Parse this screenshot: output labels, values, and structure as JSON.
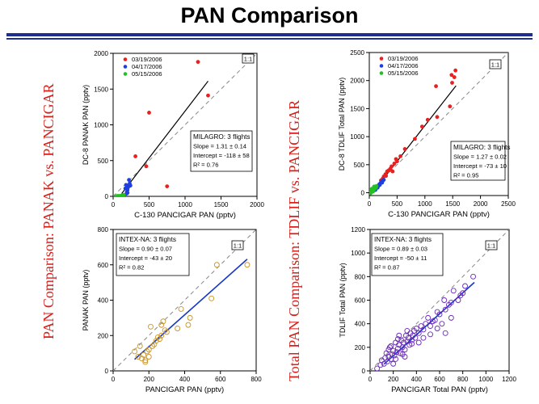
{
  "title": "PAN Comparison",
  "side_labels": {
    "left": "PAN Comparison: PANAK vs. PANCIGAR",
    "right": "Total PAN Comparison: TDLIF vs. PANCIGAR"
  },
  "colors": {
    "march": "#e8201f",
    "april": "#1e3ee0",
    "may": "#22c020",
    "intex_panak": "#c8962a",
    "intex_tdlif": "#6a2ab8",
    "fit_milagro": "#000000",
    "fit_intex": "#1536c8",
    "rule": "#1f2f8f"
  },
  "chart_data": [
    {
      "id": "tl",
      "type": "scatter",
      "campaign": "MILAGRO",
      "xlabel": "C-130 PANCIGAR PAN (pptv)",
      "ylabel": "DC-8 PANAK PAN (pptv)",
      "xlim": [
        0,
        2000
      ],
      "ylim": [
        0,
        2000
      ],
      "xticks": [
        0,
        500,
        1000,
        1500,
        2000
      ],
      "yticks": [
        0,
        500,
        1000,
        1500,
        2000
      ],
      "one_to_one_label": "1:1",
      "legend": [
        "03/19/2006",
        "04/17/2006",
        "05/15/2006"
      ],
      "stats": [
        "MILAGRO: 3 flights",
        "Slope = 1.31 ± 0.14",
        "Intercept = -118 ± 58",
        "R² = 0.76"
      ],
      "fit": {
        "slope": 1.31,
        "intercept": -118,
        "x_range": [
          120,
          1320
        ]
      },
      "series": [
        {
          "name": "03/19/2006",
          "color_key": "march",
          "x": [
            1180,
            1320,
            500,
            310,
            460,
            750
          ],
          "y": [
            1880,
            1410,
            1170,
            560,
            420,
            140
          ]
        },
        {
          "name": "04/17/2006",
          "color_key": "april",
          "x": [
            160,
            190,
            200,
            210,
            180,
            230,
            220,
            170,
            240,
            200,
            190
          ],
          "y": [
            20,
            60,
            90,
            130,
            160,
            180,
            230,
            110,
            150,
            50,
            40
          ]
        },
        {
          "name": "05/15/2006",
          "color_key": "may",
          "x": [
            40,
            60,
            90,
            110,
            130,
            150,
            80
          ],
          "y": [
            0,
            5,
            0,
            10,
            15,
            20,
            5
          ]
        }
      ]
    },
    {
      "id": "tr",
      "type": "scatter",
      "campaign": "MILAGRO",
      "xlabel": "C-130 PANCIGAR PAN (pptv)",
      "ylabel": "DC-8 TDLIF Total PAN (pptv)",
      "xlim": [
        0,
        2500
      ],
      "ylim": [
        -50,
        2500
      ],
      "xticks": [
        0,
        500,
        1000,
        1500,
        2000,
        2500
      ],
      "yticks": [
        0,
        500,
        1000,
        1500,
        2000,
        2500
      ],
      "one_to_one_label": "1:1",
      "legend": [
        "03/19/2006",
        "04/17/2006",
        "05/15/2006"
      ],
      "stats": [
        "MILAGRO: 3 flights",
        "Slope = 1.27 ± 0.02",
        "Intercept = -73 ± 10",
        "R² = 0.95"
      ],
      "fit": {
        "slope": 1.27,
        "intercept": -73,
        "x_range": [
          40,
          1560
        ]
      },
      "series": [
        {
          "name": "03/19/2006",
          "color_key": "march",
          "x": [
            1550,
            1530,
            1490,
            1480,
            1450,
            1200,
            1220,
            1050,
            950,
            820,
            640,
            560,
            480,
            450,
            400,
            380,
            350,
            320,
            290,
            260,
            240,
            210,
            500,
            420,
            300
          ],
          "y": [
            2180,
            2060,
            1960,
            2100,
            1540,
            1900,
            1350,
            1300,
            1180,
            960,
            780,
            650,
            600,
            520,
            470,
            430,
            400,
            380,
            330,
            290,
            250,
            220,
            560,
            380,
            300
          ]
        },
        {
          "name": "04/17/2006",
          "color_key": "april",
          "x": [
            80,
            100,
            120,
            140,
            160,
            180,
            200,
            220,
            240,
            260,
            150,
            190,
            230,
            110,
            170
          ],
          "y": [
            40,
            60,
            80,
            100,
            120,
            150,
            170,
            190,
            210,
            230,
            90,
            140,
            180,
            50,
            130
          ]
        },
        {
          "name": "05/15/2006",
          "color_key": "may",
          "x": [
            20,
            30,
            40,
            50,
            60,
            70,
            80,
            90,
            100,
            110,
            120,
            130,
            45,
            65,
            85
          ],
          "y": [
            -10,
            20,
            10,
            40,
            30,
            60,
            50,
            80,
            70,
            100,
            90,
            120,
            70,
            20,
            110
          ]
        }
      ]
    },
    {
      "id": "bl",
      "type": "scatter",
      "campaign": "INTEX-NA",
      "xlabel": "PANCIGAR  PAN  (pptv)",
      "ylabel": "PANAK PAN  (pptv)",
      "xlim": [
        0,
        800
      ],
      "ylim": [
        0,
        800
      ],
      "xticks": [
        0,
        200,
        400,
        600,
        800
      ],
      "yticks": [
        0,
        200,
        400,
        600,
        800
      ],
      "one_to_one_label": "1:1",
      "stats": [
        "INTEX-NA: 3 flights",
        "Slope = 0.90 ± 0.07",
        "Intercept = -43 ± 20",
        "R² = 0.82"
      ],
      "fit": {
        "slope": 0.9,
        "intercept": -43,
        "x_range": [
          120,
          750
        ]
      },
      "series": [
        {
          "name": "INTEX-NA",
          "color_key": "intex_panak",
          "hollow": true,
          "x": [
            750,
            580,
            550,
            430,
            420,
            380,
            360,
            290,
            280,
            270,
            270,
            250,
            240,
            230,
            220,
            210,
            200,
            200,
            190,
            180,
            170,
            160,
            150,
            140,
            120,
            180,
            260,
            300
          ],
          "y": [
            600,
            600,
            410,
            300,
            260,
            350,
            240,
            230,
            280,
            260,
            200,
            190,
            170,
            150,
            140,
            250,
            120,
            80,
            110,
            60,
            90,
            70,
            140,
            80,
            110,
            50,
            180,
            220
          ]
        }
      ]
    },
    {
      "id": "br",
      "type": "scatter",
      "campaign": "INTEX-NA",
      "xlabel": "PANCIGAR Total PAN (pptv)",
      "ylabel": "TDLIF Total PAN (pptv)",
      "xlim": [
        0,
        1200
      ],
      "ylim": [
        0,
        1200
      ],
      "xticks": [
        0,
        200,
        400,
        600,
        800,
        1000,
        1200
      ],
      "yticks": [
        0,
        200,
        400,
        600,
        800,
        1000,
        1200
      ],
      "one_to_one_label": "1:1",
      "stats": [
        "INTEX-NA: 3 flights",
        "Slope = 0.89 ± 0.03",
        "Intercept = -50 ± 11",
        "R² = 0.87"
      ],
      "fit": {
        "slope": 0.89,
        "intercept": -50,
        "x_range": [
          120,
          900
        ]
      },
      "series": [
        {
          "name": "INTEX-NA",
          "color_key": "intex_tdlif",
          "hollow": true,
          "x": [
            890,
            820,
            800,
            780,
            760,
            720,
            700,
            680,
            650,
            640,
            620,
            600,
            580,
            560,
            540,
            520,
            500,
            480,
            460,
            440,
            420,
            400,
            390,
            380,
            370,
            360,
            350,
            340,
            330,
            320,
            310,
            300,
            290,
            280,
            270,
            260,
            250,
            240,
            230,
            220,
            210,
            200,
            190,
            180,
            170,
            160,
            150,
            140,
            130,
            120,
            100,
            90,
            60,
            650,
            700,
            420,
            300,
            250,
            200,
            180,
            160,
            220,
            240,
            280,
            320,
            360,
            460,
            520,
            580
          ],
          "y": [
            800,
            720,
            660,
            640,
            600,
            680,
            580,
            560,
            520,
            600,
            400,
            480,
            500,
            430,
            420,
            380,
            450,
            400,
            350,
            380,
            320,
            360,
            280,
            340,
            300,
            260,
            320,
            220,
            280,
            250,
            300,
            180,
            240,
            200,
            260,
            150,
            220,
            190,
            160,
            240,
            130,
            170,
            140,
            100,
            200,
            120,
            80,
            150,
            110,
            60,
            90,
            50,
            20,
            320,
            450,
            240,
            120,
            300,
            60,
            210,
            180,
            100,
            270,
            140,
            340,
            230,
            280,
            310,
            360
          ]
        }
      ]
    }
  ]
}
